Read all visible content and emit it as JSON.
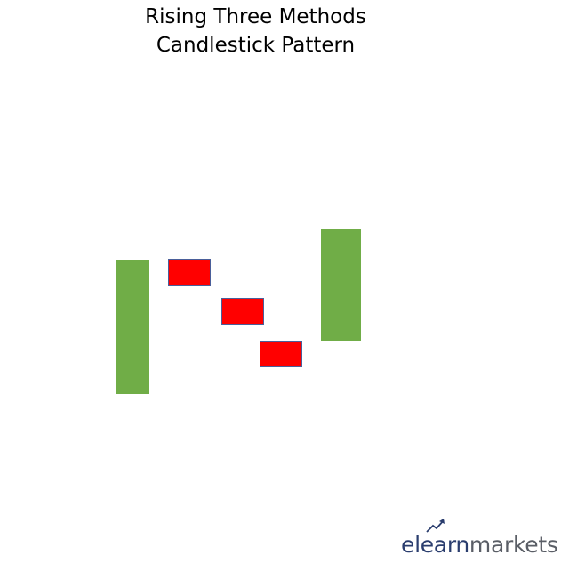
{
  "title": {
    "line1": "Rising Three Methods",
    "line2": "Candlestick Pattern"
  },
  "candles": [
    {
      "name": "candle-1-bullish",
      "type": "bullish"
    },
    {
      "name": "candle-2-bearish",
      "type": "bearish"
    },
    {
      "name": "candle-3-bearish",
      "type": "bearish"
    },
    {
      "name": "candle-4-bearish",
      "type": "bearish"
    },
    {
      "name": "candle-5-bullish",
      "type": "bullish"
    }
  ],
  "colors": {
    "bullish": "#70ad47",
    "bearish": "#ff0000",
    "bearish_border": "#4a5f9a"
  },
  "logo": {
    "part_a": "elearn",
    "part_b": "markets",
    "accent_icon": "trend-arrow-icon"
  }
}
